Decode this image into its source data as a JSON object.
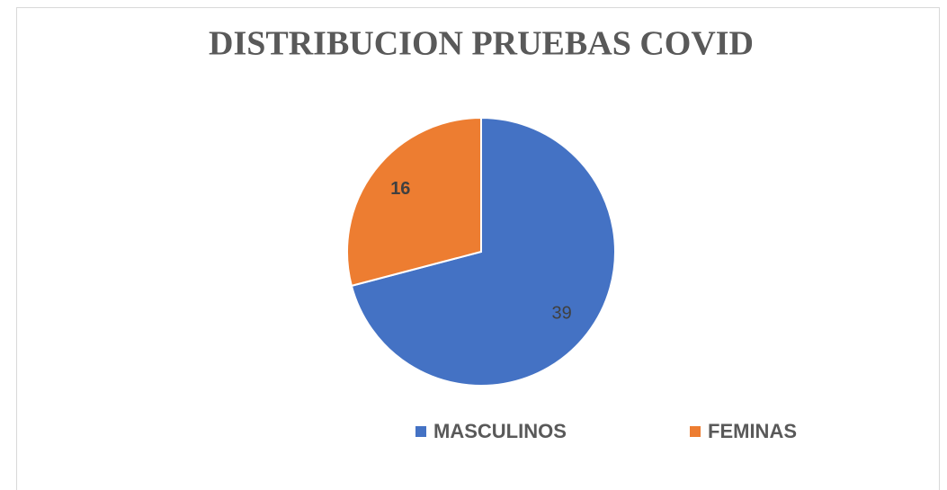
{
  "chart_data": {
    "type": "pie",
    "title": "DISTRIBUCION PRUEBAS COVID",
    "categories": [
      "MASCULINOS",
      "FEMINAS"
    ],
    "values": [
      39,
      16
    ],
    "colors": [
      "#4472c4",
      "#ed7d31"
    ],
    "legend": "bottom"
  }
}
